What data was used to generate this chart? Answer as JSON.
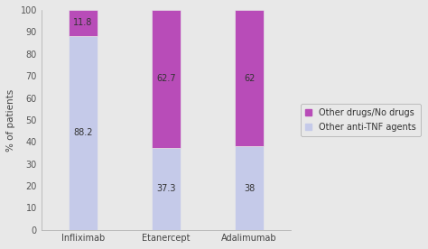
{
  "categories": [
    "Infliximab",
    "Etanercept",
    "Adalimumab"
  ],
  "anti_tnf_values": [
    88.2,
    37.3,
    38
  ],
  "other_drugs_values": [
    11.8,
    62.7,
    62
  ],
  "anti_tnf_color": "#c5cae9",
  "other_drugs_color": "#b84cb8",
  "anti_tnf_label": "Other anti-TNF agents",
  "other_drugs_label": "Other drugs/No drugs",
  "ylabel": "% of patients",
  "ylim": [
    0,
    100
  ],
  "yticks": [
    0,
    10,
    20,
    30,
    40,
    50,
    60,
    70,
    80,
    90,
    100
  ],
  "bar_width": 0.35,
  "background_color": "#e8e8e8",
  "plot_bg_color": "#e8e8e8",
  "label_fontsize": 7,
  "tick_fontsize": 7,
  "legend_fontsize": 7,
  "ylabel_fontsize": 7.5,
  "bar_positions": [
    0,
    1,
    2
  ],
  "legend_box_color": "#c5cae9",
  "legend_box_color2": "#b84cb8"
}
